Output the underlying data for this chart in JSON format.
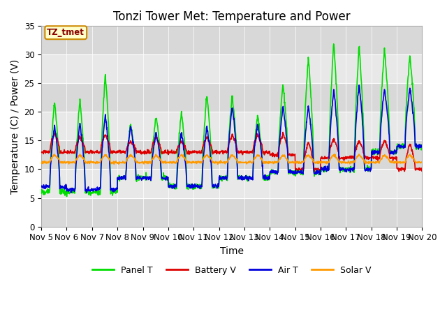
{
  "title": "Tonzi Tower Met: Temperature and Power",
  "xlabel": "Time",
  "ylabel": "Temperature (C) / Power (V)",
  "legend_label": "TZ_tmet",
  "ylim": [
    0,
    35
  ],
  "series": {
    "panel_t": {
      "label": "Panel T",
      "color": "#00dd00",
      "lw": 1.2
    },
    "battery_v": {
      "label": "Battery V",
      "color": "#dd0000",
      "lw": 1.2
    },
    "air_t": {
      "label": "Air T",
      "color": "#0000dd",
      "lw": 1.2
    },
    "solar_v": {
      "label": "Solar V",
      "color": "#ff9900",
      "lw": 1.2
    }
  },
  "plot_bg_color": "#e8e8e8",
  "band_color_light": "#ebebeb",
  "band_color_dark": "#d8d8d8",
  "xtick_labels": [
    "Nov 5",
    "Nov 6",
    "Nov 7",
    "Nov 8",
    "Nov 9",
    "Nov 10",
    "Nov 11",
    "Nov 12",
    "Nov 13",
    "Nov 14",
    "Nov 15",
    "Nov 16",
    "Nov 17",
    "Nov 18",
    "Nov 19",
    "Nov 20"
  ],
  "ytick_values": [
    0,
    5,
    10,
    15,
    20,
    25,
    30,
    35
  ],
  "title_fontsize": 12,
  "axis_label_fontsize": 10,
  "tick_fontsize": 8.5
}
